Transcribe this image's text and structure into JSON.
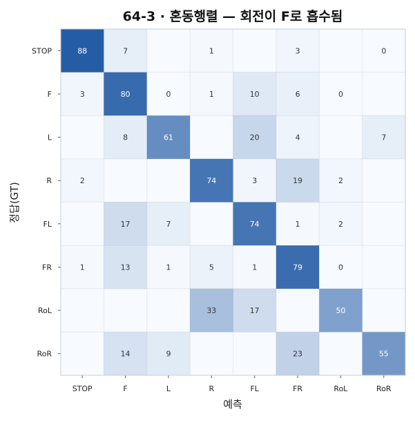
{
  "chart_data": {
    "type": "heatmap",
    "title": "64-3 · 혼동행렬 — 회전이 F로 흡수됨",
    "xlabel": "예측",
    "ylabel": "정답(GT)",
    "x_categories": [
      "STOP",
      "F",
      "L",
      "R",
      "FL",
      "FR",
      "RoL",
      "RoR"
    ],
    "y_categories": [
      "STOP",
      "F",
      "L",
      "R",
      "FL",
      "FR",
      "RoL",
      "RoR"
    ],
    "values": [
      [
        88,
        7,
        null,
        1,
        null,
        3,
        null,
        0
      ],
      [
        3,
        80,
        0,
        1,
        10,
        6,
        0,
        null
      ],
      [
        null,
        8,
        61,
        null,
        20,
        4,
        null,
        7
      ],
      [
        2,
        null,
        null,
        74,
        3,
        19,
        2,
        null
      ],
      [
        null,
        17,
        7,
        null,
        74,
        1,
        2,
        null
      ],
      [
        1,
        13,
        1,
        5,
        1,
        79,
        0,
        null
      ],
      [
        null,
        null,
        null,
        33,
        17,
        null,
        50,
        null
      ],
      [
        null,
        14,
        9,
        null,
        null,
        23,
        null,
        55
      ]
    ],
    "color_scale": {
      "low": "#f7fbff",
      "high": "#08469a"
    },
    "value_range": [
      0,
      100
    ],
    "grid": true,
    "legend": "none"
  }
}
